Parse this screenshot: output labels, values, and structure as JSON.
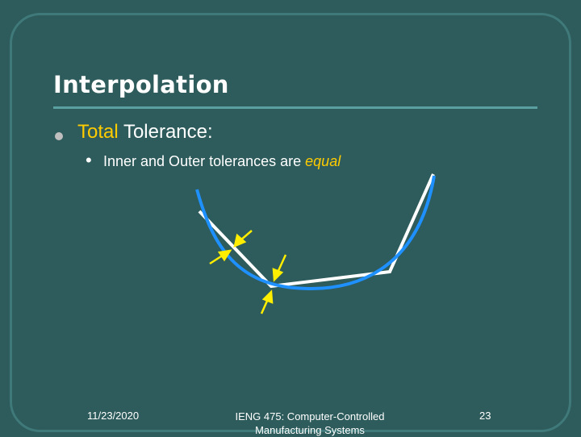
{
  "slide": {
    "title": "Interpolation",
    "bullet_level1": {
      "accent": "Total",
      "text": " Tolerance:"
    },
    "bullet_level2": {
      "text": "Inner and Outer tolerances are ",
      "accent": "equal"
    },
    "footer": {
      "date": "11/23/2020",
      "course": "IENG 475: Computer-Controlled Manufacturing Systems",
      "page": "23"
    }
  },
  "colors": {
    "background": "#2e5b5b",
    "frame": "#3f7979",
    "accent": "#ffcc00",
    "curve": "#1e90ff",
    "polyline": "#ffffff",
    "arrows": "#ffee00"
  }
}
